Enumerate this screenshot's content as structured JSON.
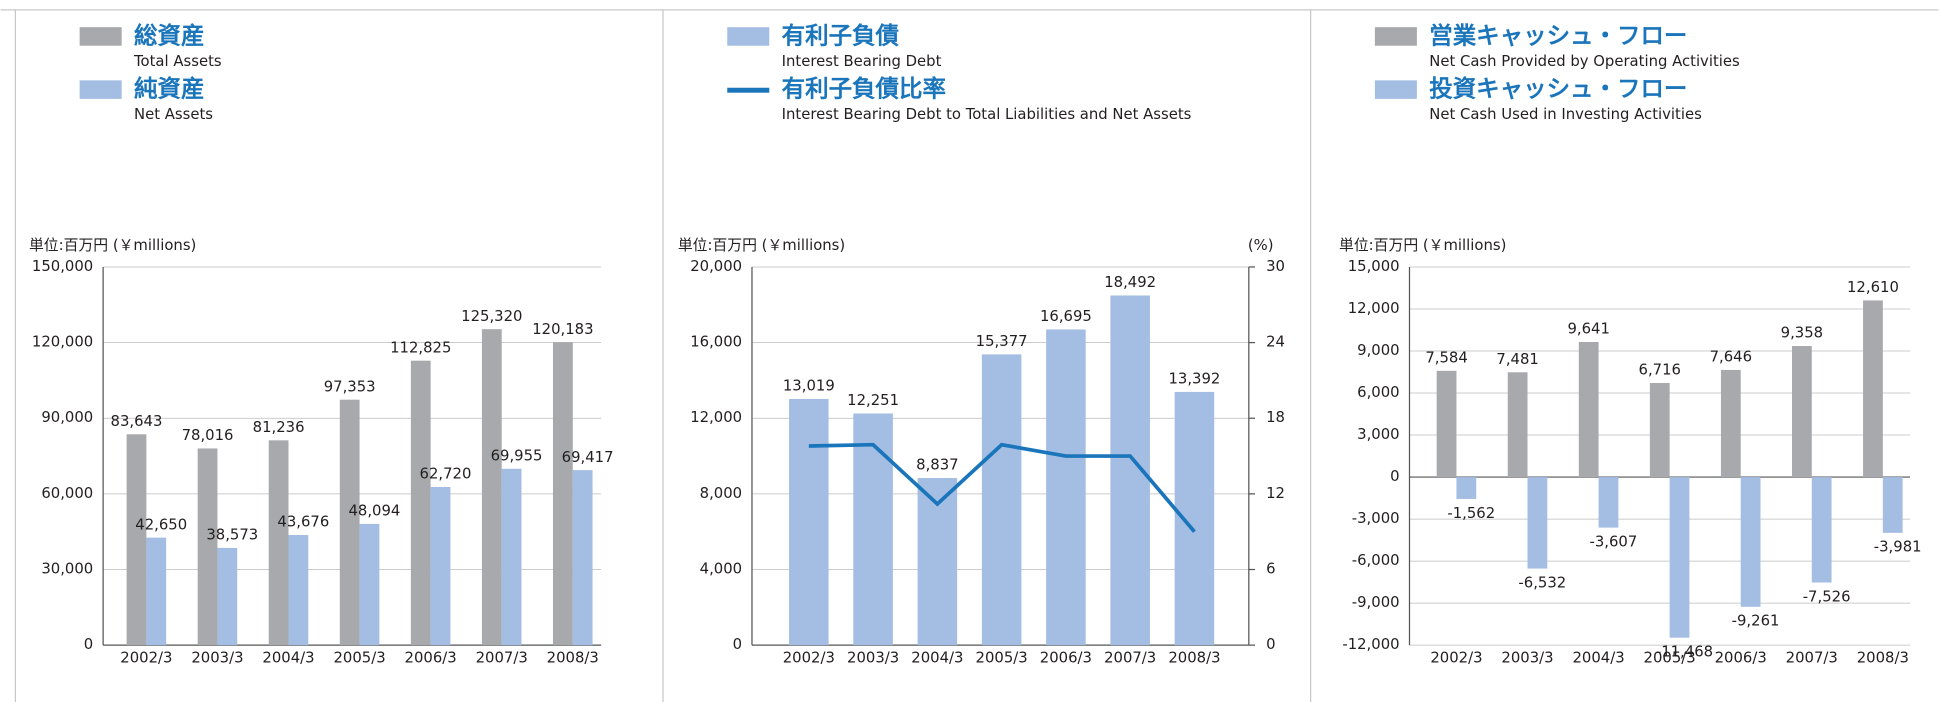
{
  "chart_data": [
    {
      "type": "bar",
      "unit_label": "単位:百万円 (￥millions)",
      "categories": [
        "2002/3",
        "2003/3",
        "2004/3",
        "2005/3",
        "2006/3",
        "2007/3",
        "2008/3"
      ],
      "series": [
        {
          "name": "総資産",
          "name_en": "Total Assets",
          "color": "#a7a9ac",
          "values": [
            83643,
            78016,
            81236,
            97353,
            112825,
            125320,
            120183
          ],
          "value_labels": [
            "83,643",
            "78,016",
            "81,236",
            "97,353",
            "112,825",
            "125,320",
            "120,183"
          ]
        },
        {
          "name": "純資産",
          "name_en": "Net Assets",
          "color": "#a3bde3",
          "values": [
            42650,
            38573,
            43676,
            48094,
            62720,
            69955,
            69417
          ],
          "value_labels": [
            "42,650",
            "38,573",
            "43,676",
            "48,094",
            "62,720",
            "69,955",
            "69,417"
          ]
        }
      ],
      "ylim": [
        0,
        150000
      ],
      "yticks": [
        0,
        {
          "value": 30000,
          "label": "30,000"
        },
        {
          "value": 60000,
          "label": "60,000"
        },
        {
          "value": 90000,
          "label": "90,000"
        },
        {
          "value": 120000,
          "label": "120,000"
        },
        {
          "value": 150000,
          "label": "150,000"
        }
      ],
      "grid": true
    },
    {
      "type": "bar",
      "unit_label": "単位:百万円 (￥millions)",
      "y2_unit_label": "(%)",
      "categories": [
        "2002/3",
        "2003/3",
        "2004/3",
        "2005/3",
        "2006/3",
        "2007/3",
        "2008/3"
      ],
      "series": [
        {
          "name": "有利子負債",
          "name_en": "Interest Bearing Debt",
          "color": "#a3bde3",
          "values": [
            13019,
            12251,
            8837,
            15377,
            16695,
            18492,
            13392
          ],
          "value_labels": [
            "13,019",
            "12,251",
            "8,837",
            "15,377",
            "16,695",
            "18,492",
            "13,392"
          ]
        },
        {
          "name": "有利子負債比率",
          "name_en": "Interest Bearing Debt to Total Liabilities and Net Assets",
          "type": "line",
          "axis": "y2",
          "color": "#1a75bb",
          "values": [
            15.8,
            15.9,
            11.2,
            15.9,
            15.0,
            15.0,
            9.0
          ]
        }
      ],
      "ylim": [
        0,
        20000
      ],
      "yticks": [
        0,
        {
          "value": 4000,
          "label": "4,000"
        },
        {
          "value": 8000,
          "label": "8,000"
        },
        {
          "value": 12000,
          "label": "12,000"
        },
        {
          "value": 16000,
          "label": "16,000"
        },
        {
          "value": 20000,
          "label": "20,000"
        }
      ],
      "y2lim": [
        0,
        30
      ],
      "y2ticks": [
        0,
        6,
        12,
        18,
        24,
        30
      ],
      "grid": true
    },
    {
      "type": "bar",
      "unit_label": "単位:百万円 (￥millions)",
      "categories": [
        "2002/3",
        "2003/3",
        "2004/3",
        "2005/3",
        "2006/3",
        "2007/3",
        "2008/3"
      ],
      "series": [
        {
          "name": "営業キャッシュ・フロー",
          "name_en": "Net Cash Provided by Operating Activities",
          "color": "#a7a9ac",
          "values": [
            7584,
            7481,
            9641,
            6716,
            7646,
            9358,
            12610
          ],
          "value_labels": [
            "7,584",
            "7,481",
            "9,641",
            "6,716",
            "7,646",
            "9,358",
            "12,610"
          ]
        },
        {
          "name": "投資キャッシュ・フロー",
          "name_en": "Net Cash Used in Investing Activities",
          "color": "#a3bde3",
          "values": [
            -1562,
            -6532,
            -3607,
            -11468,
            -9261,
            -7526,
            -3981
          ],
          "value_labels": [
            "-1,562",
            "-6,532",
            "-3,607",
            "-11,468",
            "-9,261",
            "-7,526",
            "-3,981"
          ]
        }
      ],
      "ylim": [
        -12000,
        15000
      ],
      "yticks": [
        {
          "value": -12000,
          "label": "-12,000"
        },
        {
          "value": -9000,
          "label": "-9,000"
        },
        {
          "value": -6000,
          "label": "-6,000"
        },
        {
          "value": -3000,
          "label": "-3,000"
        },
        0,
        {
          "value": 3000,
          "label": "3,000"
        },
        {
          "value": 6000,
          "label": "6,000"
        },
        {
          "value": 9000,
          "label": "9,000"
        },
        {
          "value": 12000,
          "label": "12,000"
        },
        {
          "value": 15000,
          "label": "15,000"
        }
      ],
      "grid": true
    }
  ]
}
